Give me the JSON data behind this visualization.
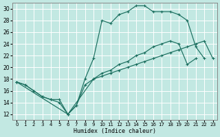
{
  "xlabel": "Humidex (Indice chaleur)",
  "bg_color": "#c2e8e2",
  "grid_color": "#b0d8d2",
  "line_color": "#1a6e5e",
  "xlim": [
    -0.5,
    23.5
  ],
  "ylim": [
    11,
    31
  ],
  "yticks": [
    12,
    14,
    16,
    18,
    20,
    22,
    24,
    26,
    28,
    30
  ],
  "xticks": [
    0,
    1,
    2,
    3,
    4,
    5,
    6,
    7,
    8,
    9,
    10,
    11,
    12,
    13,
    14,
    15,
    16,
    17,
    18,
    19,
    20,
    21,
    22,
    23
  ],
  "curve1_x": [
    0,
    1,
    2,
    3,
    4,
    5,
    6,
    7,
    8,
    9,
    10,
    11,
    12,
    13,
    14,
    15,
    16,
    17,
    18,
    19,
    20,
    21,
    22
  ],
  "curve1_y": [
    17.5,
    17.0,
    16.0,
    15.0,
    14.5,
    14.0,
    12.0,
    13.5,
    18.0,
    21.5,
    28.0,
    27.5,
    29.0,
    29.5,
    30.5,
    30.5,
    29.5,
    29.5,
    29.5,
    29.0,
    28.0,
    23.5,
    21.5
  ],
  "curve2_x": [
    0,
    1,
    2,
    3,
    4,
    5,
    6,
    7,
    8,
    9,
    10,
    11,
    12,
    13,
    14,
    15,
    16,
    17,
    18,
    19,
    20,
    21
  ],
  "curve2_y": [
    17.5,
    17.0,
    16.0,
    15.0,
    14.5,
    14.5,
    12.0,
    13.5,
    17.0,
    18.0,
    19.0,
    19.5,
    20.5,
    21.0,
    22.0,
    22.5,
    23.5,
    24.0,
    24.5,
    24.0,
    20.5,
    21.5
  ],
  "curve3_x": [
    0,
    6,
    9,
    10,
    11,
    12,
    13,
    14,
    15,
    16,
    17,
    18,
    19,
    20,
    21,
    22,
    23
  ],
  "curve3_y": [
    17.5,
    12.0,
    18.0,
    18.5,
    19.0,
    19.5,
    20.0,
    20.5,
    21.0,
    21.5,
    22.0,
    22.5,
    23.0,
    23.5,
    24.0,
    24.5,
    21.5
  ],
  "markersize": 3.0,
  "linewidth": 0.85
}
